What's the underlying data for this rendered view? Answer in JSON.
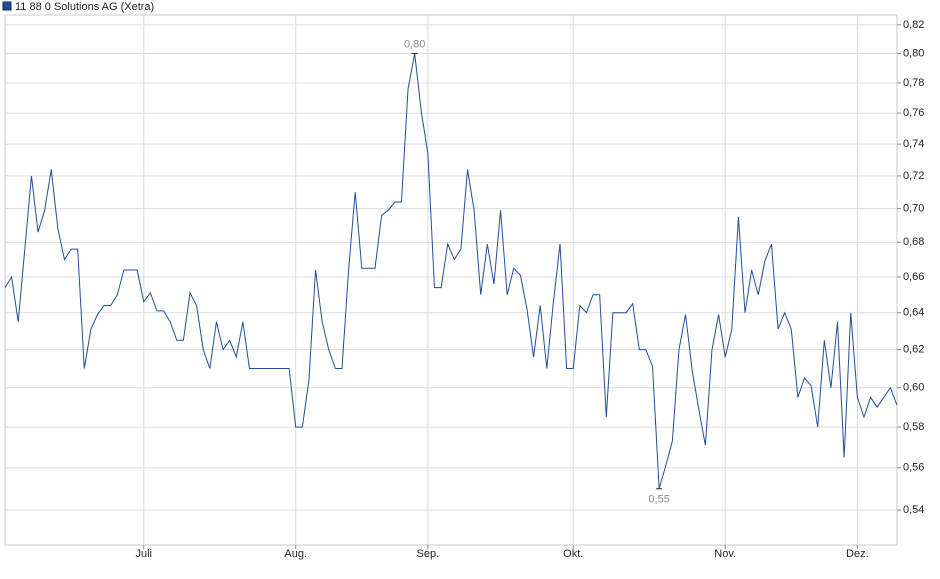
{
  "chart_data": {
    "type": "line",
    "categories": [
      null,
      null,
      null,
      null,
      null,
      null,
      null,
      null,
      null,
      null,
      null,
      null,
      null,
      null,
      null,
      null,
      null,
      null,
      null,
      null,
      null,
      "Juli",
      null,
      null,
      null,
      null,
      null,
      null,
      null,
      null,
      null,
      null,
      null,
      null,
      null,
      null,
      null,
      null,
      null,
      null,
      null,
      null,
      null,
      null,
      "Aug.",
      null,
      null,
      null,
      null,
      null,
      null,
      null,
      null,
      null,
      null,
      null,
      null,
      null,
      null,
      null,
      null,
      null,
      null,
      null,
      "Sep.",
      null,
      null,
      null,
      null,
      null,
      null,
      null,
      null,
      null,
      null,
      null,
      null,
      null,
      null,
      null,
      null,
      null,
      null,
      null,
      null,
      null,
      "Okt.",
      null,
      null,
      null,
      null,
      null,
      null,
      null,
      null,
      null,
      null,
      null,
      null,
      null,
      null,
      null,
      null,
      null,
      null,
      null,
      null,
      null,
      null,
      "Nov.",
      null,
      null,
      null,
      null,
      null,
      null,
      null,
      null,
      null,
      null,
      null,
      null,
      null,
      null,
      null,
      null,
      null,
      null,
      null,
      "Dez.",
      null,
      null,
      null,
      null,
      null,
      null
    ],
    "series": [
      {
        "name": "11 88 0 Solutions AG (Xetra)",
        "color": "#1f4f9a",
        "values": [
          0.654,
          0.66,
          0.635,
          0.676,
          0.72,
          0.686,
          0.699,
          0.724,
          0.688,
          0.67,
          0.676,
          0.676,
          0.61,
          0.631,
          0.639,
          0.644,
          0.644,
          0.65,
          0.664,
          0.664,
          0.664,
          0.646,
          0.651,
          0.641,
          0.641,
          0.635,
          0.625,
          0.625,
          0.651,
          0.644,
          0.62,
          0.61,
          0.635,
          0.62,
          0.625,
          0.616,
          0.635,
          0.61,
          0.61,
          0.61,
          0.61,
          0.61,
          0.61,
          0.61,
          0.58,
          0.58,
          0.604,
          0.664,
          0.635,
          0.62,
          0.61,
          0.61,
          0.664,
          0.71,
          0.665,
          0.665,
          0.665,
          0.696,
          0.699,
          0.704,
          0.704,
          0.776,
          0.8,
          0.761,
          0.734,
          0.654,
          0.654,
          0.679,
          0.67,
          0.676,
          0.724,
          0.699,
          0.65,
          0.679,
          0.656,
          0.699,
          0.65,
          0.665,
          0.661,
          0.642,
          0.616,
          0.644,
          0.61,
          0.646,
          0.679,
          0.61,
          0.61,
          0.644,
          0.64,
          0.65,
          0.65,
          0.585,
          0.64,
          0.64,
          0.64,
          0.645,
          0.62,
          0.62,
          0.611,
          0.55,
          0.561,
          0.573,
          0.62,
          0.639,
          0.609,
          0.589,
          0.571,
          0.62,
          0.639,
          0.616,
          0.631,
          0.695,
          0.64,
          0.664,
          0.65,
          0.669,
          0.679,
          0.631,
          0.64,
          0.631,
          0.595,
          0.605,
          0.601,
          0.58,
          0.625,
          0.6,
          0.635,
          0.565,
          0.64,
          0.595,
          0.585,
          0.595,
          0.59,
          0.595,
          0.6,
          0.591
        ],
        "value_labels": [
          null,
          null,
          null,
          null,
          null,
          null,
          null,
          null,
          null,
          null,
          null,
          null,
          null,
          null,
          null,
          null,
          null,
          null,
          null,
          null,
          null,
          null,
          null,
          null,
          null,
          null,
          null,
          null,
          null,
          null,
          null,
          null,
          null,
          null,
          null,
          null,
          null,
          null,
          null,
          null,
          null,
          null,
          null,
          null,
          null,
          null,
          null,
          null,
          null,
          null,
          null,
          null,
          null,
          null,
          null,
          null,
          null,
          null,
          null,
          null,
          null,
          null,
          "0,80",
          null,
          null,
          null,
          null,
          null,
          null,
          null,
          null,
          null,
          null,
          null,
          null,
          null,
          null,
          null,
          null,
          null,
          null,
          null,
          null,
          null,
          null,
          null,
          null,
          null,
          null,
          null,
          null,
          null,
          null,
          null,
          null,
          null,
          null,
          null,
          null,
          "0,55",
          null,
          null,
          null,
          null,
          null,
          null,
          null,
          null,
          null,
          null,
          null,
          null,
          null,
          null,
          null,
          null,
          null,
          null,
          null,
          null,
          null,
          null,
          null,
          null,
          null,
          null,
          null,
          null,
          null,
          null,
          null,
          null,
          null,
          null,
          null,
          null
        ]
      }
    ],
    "ylim": [
      0.524,
      0.827
    ],
    "log_scale": true,
    "grid": true,
    "yticks": [
      {
        "value": 0.54,
        "label": "0,54"
      },
      {
        "value": 0.56,
        "label": "0,56"
      },
      {
        "value": 0.58,
        "label": "0,58"
      },
      {
        "value": 0.6,
        "label": "0,60"
      },
      {
        "value": 0.62,
        "label": "0,62"
      },
      {
        "value": 0.64,
        "label": "0,64"
      },
      {
        "value": 0.66,
        "label": "0,66"
      },
      {
        "value": 0.68,
        "label": "0,68"
      },
      {
        "value": 0.7,
        "label": "0,70"
      },
      {
        "value": 0.72,
        "label": "0,72"
      },
      {
        "value": 0.74,
        "label": "0,74"
      },
      {
        "value": 0.76,
        "label": "0,76"
      },
      {
        "value": 0.78,
        "label": "0,78"
      },
      {
        "value": 0.8,
        "label": "0,80"
      },
      {
        "value": 0.82,
        "label": "0,82"
      }
    ]
  }
}
